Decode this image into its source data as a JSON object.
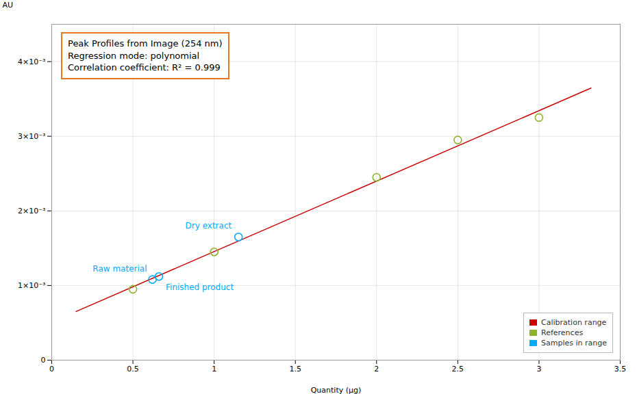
{
  "chart_data": {
    "type": "scatter",
    "xlabel": "Quantity (µg)",
    "ylabel": "AU",
    "xlim": [
      0,
      3.5
    ],
    "ylim": [
      0,
      0.0045
    ],
    "xticks": [
      0,
      0.5,
      1,
      1.5,
      2,
      2.5,
      3,
      3.5
    ],
    "yticks": [
      0,
      {
        "value": 0.001,
        "label": "1×10⁻³"
      },
      {
        "value": 0.002,
        "label": "2×10⁻³"
      },
      {
        "value": 0.003,
        "label": "3×10⁻³"
      },
      {
        "value": 0.004,
        "label": "4×10⁻³"
      }
    ],
    "grid": true,
    "legend": "lower right",
    "series": [
      {
        "name": "Calibration range",
        "type": "line",
        "color": "#cc0000",
        "x": [
          0.15,
          3.32
        ],
        "values": [
          0.000652093,
          0.00364516
        ]
      },
      {
        "name": "References",
        "type": "scatter",
        "marker": "circle",
        "color": "#8db32a",
        "x": [
          0.5,
          1.0,
          2.0,
          2.5,
          3.0
        ],
        "values": [
          0.00095,
          0.00145,
          0.00245,
          0.00295,
          0.00325
        ]
      },
      {
        "name": "Samples in range",
        "type": "scatter",
        "marker": "circle",
        "color": "#00aaff",
        "x": [
          0.62,
          0.66,
          1.15
        ],
        "values": [
          0.00108,
          0.00112,
          0.00165
        ]
      }
    ],
    "annotations": [
      {
        "text": "Peak Profiles from Image (254 nm)\nRegression mode: polynomial\nCorrelation coefficient: R² = 0.999",
        "color": "#e87722"
      },
      {
        "text": "Raw material",
        "x": 0.62,
        "y": 0.00108,
        "color": "#00aaff"
      },
      {
        "text": "Finished product",
        "x": 0.66,
        "y": 0.00112,
        "color": "#00aaff"
      },
      {
        "text": "Dry extract",
        "x": 1.15,
        "y": 0.00165,
        "color": "#00aaff"
      }
    ]
  }
}
